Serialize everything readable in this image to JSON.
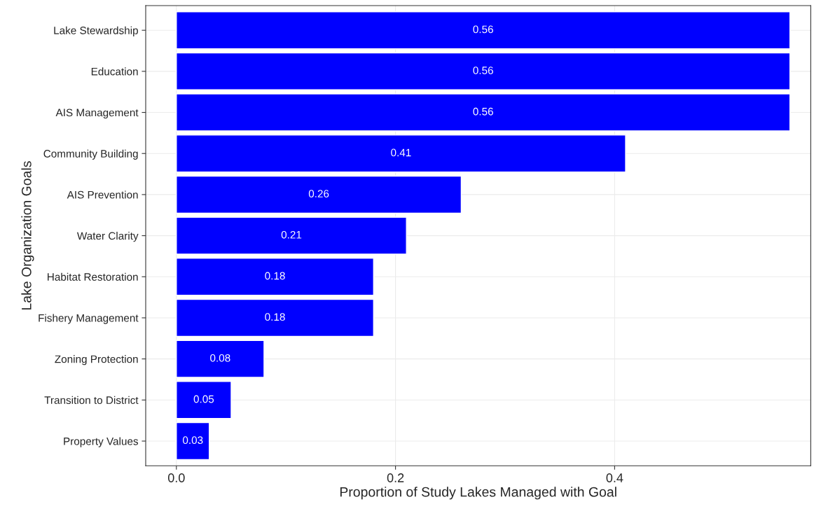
{
  "chart_data": {
    "type": "bar",
    "orientation": "horizontal",
    "xlabel": "Proportion of Study Lakes Managed with Goal",
    "ylabel": "Lake Organization Goals",
    "categories": [
      "Lake Stewardship",
      "Education",
      "AIS Management",
      "Community Building",
      "AIS Prevention",
      "Water Clarity",
      "Habitat Restoration",
      "Fishery Management",
      "Zoning Protection",
      "Transition to District",
      "Property Values"
    ],
    "values": [
      0.56,
      0.56,
      0.56,
      0.41,
      0.26,
      0.21,
      0.18,
      0.18,
      0.08,
      0.05,
      0.03
    ],
    "color": "#0000ff",
    "data_labels": true,
    "xlim": [
      -0.028,
      0.579
    ],
    "xticks": [
      {
        "value": 0,
        "label": "0.0"
      },
      0.2,
      0.4
    ],
    "grid": true
  }
}
